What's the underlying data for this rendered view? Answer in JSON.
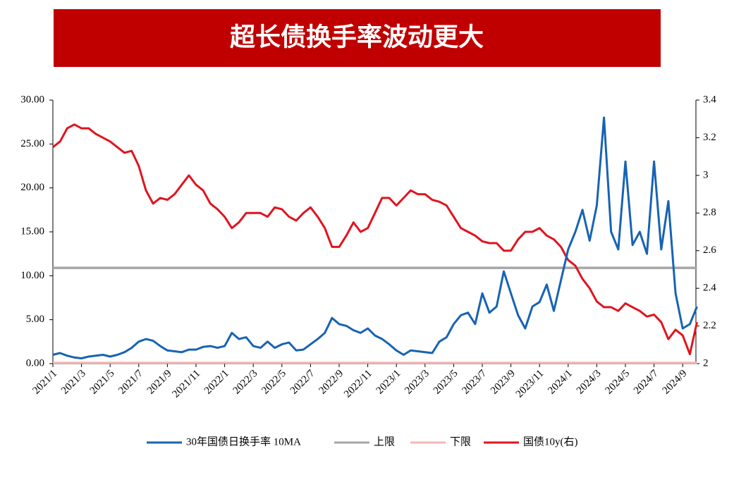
{
  "chart_data": {
    "type": "line",
    "title": "超长债换手率波动更大",
    "categories": [
      "2021/1",
      null,
      null,
      null,
      "2021/3",
      null,
      null,
      null,
      "2021/5",
      null,
      null,
      null,
      "2021/7",
      null,
      null,
      null,
      "2021/9",
      null,
      null,
      null,
      "2021/11",
      null,
      null,
      null,
      "2022/1",
      null,
      null,
      null,
      "2022/3",
      null,
      null,
      null,
      "2022/5",
      null,
      null,
      null,
      "2022/7",
      null,
      null,
      null,
      "2022/9",
      null,
      null,
      null,
      "2022/11",
      null,
      null,
      null,
      "2023/1",
      null,
      null,
      null,
      "2023/3",
      null,
      null,
      null,
      "2023/5",
      null,
      null,
      null,
      "2023/7",
      null,
      null,
      null,
      "2023/9",
      null,
      null,
      null,
      "2023/11",
      null,
      null,
      null,
      "2024/1",
      null,
      null,
      null,
      "2024/3",
      null,
      null,
      null,
      "2024/5",
      null,
      null,
      null,
      "2024/7",
      null,
      null,
      null,
      "2024/9",
      null,
      null
    ],
    "ylim": [
      0,
      30
    ],
    "yticks": [
      {
        "value": 0,
        "label": "0.00"
      },
      {
        "value": 5,
        "label": "5.00"
      },
      {
        "value": 10,
        "label": "10.00"
      },
      {
        "value": 15,
        "label": "15.00"
      },
      {
        "value": 20,
        "label": "20.00"
      },
      {
        "value": 25,
        "label": "25.00"
      },
      {
        "value": 30,
        "label": "30.00"
      }
    ],
    "y2lim": [
      2,
      3.4
    ],
    "y2ticks": [
      2,
      2.2,
      2.4,
      2.6,
      2.8,
      3,
      3.2,
      3.4
    ],
    "series": [
      {
        "name": "30年国债日换手率 10MA",
        "color": "#1763b4",
        "values": [
          1.0,
          1.2,
          0.9,
          0.7,
          0.6,
          0.8,
          0.9,
          1.0,
          0.8,
          1.0,
          1.3,
          1.8,
          2.5,
          2.8,
          2.6,
          2.0,
          1.5,
          1.4,
          1.3,
          1.6,
          1.6,
          1.9,
          2.0,
          1.8,
          2.0,
          3.5,
          2.8,
          3.0,
          2.0,
          1.8,
          2.5,
          1.8,
          2.2,
          2.4,
          1.5,
          1.6,
          2.2,
          2.8,
          3.5,
          5.2,
          4.5,
          4.3,
          3.8,
          3.5,
          4.0,
          3.2,
          2.8,
          2.2,
          1.5,
          1.0,
          1.5,
          1.4,
          1.3,
          1.2,
          2.5,
          3.0,
          4.5,
          5.5,
          5.8,
          4.5,
          8.0,
          5.8,
          6.5,
          10.5,
          8.0,
          5.5,
          4.0,
          6.5,
          7.0,
          9.0,
          6.0,
          9.5,
          13.0,
          15,
          17.5,
          14,
          18,
          28,
          15,
          13,
          23,
          13.5,
          15,
          12.5,
          23,
          13,
          18.5,
          8,
          4.0,
          4.5,
          6.5
        ]
      },
      {
        "name": "上限",
        "color": "#a6a6a6",
        "values": [
          10.9,
          10.9,
          10.9,
          10.9,
          10.9,
          10.9,
          10.9,
          10.9,
          10.9,
          10.9,
          10.9,
          10.9,
          10.9,
          10.9,
          10.9,
          10.9,
          10.9,
          10.9,
          10.9,
          10.9,
          10.9,
          10.9,
          10.9,
          10.9,
          10.9,
          10.9,
          10.9,
          10.9,
          10.9,
          10.9,
          10.9,
          10.9,
          10.9,
          10.9,
          10.9,
          10.9,
          10.9,
          10.9,
          10.9,
          10.9,
          10.9,
          10.9,
          10.9,
          10.9,
          10.9,
          10.9,
          10.9,
          10.9,
          10.9,
          10.9,
          10.9,
          10.9,
          10.9,
          10.9,
          10.9,
          10.9,
          10.9,
          10.9,
          10.9,
          10.9,
          10.9,
          10.9,
          10.9,
          10.9,
          10.9,
          10.9,
          10.9,
          10.9,
          10.9,
          10.9,
          10.9,
          10.9,
          10.9,
          10.9,
          10.9,
          10.9,
          10.9,
          10.9,
          10.9,
          10.9,
          10.9,
          10.9,
          10.9,
          10.9,
          10.9,
          10.9,
          10.9,
          10.9,
          10.9,
          10.9,
          10.9
        ]
      },
      {
        "name": "下限",
        "color": "#f4b6b8",
        "values": [
          0.1,
          0.1,
          0.1,
          0.1,
          0.1,
          0.1,
          0.1,
          0.1,
          0.1,
          0.1,
          0.1,
          0.1,
          0.1,
          0.1,
          0.1,
          0.1,
          0.1,
          0.1,
          0.1,
          0.1,
          0.1,
          0.1,
          0.1,
          0.1,
          0.1,
          0.1,
          0.1,
          0.1,
          0.1,
          0.1,
          0.1,
          0.1,
          0.1,
          0.1,
          0.1,
          0.1,
          0.1,
          0.1,
          0.1,
          0.1,
          0.1,
          0.1,
          0.1,
          0.1,
          0.1,
          0.1,
          0.1,
          0.1,
          0.1,
          0.1,
          0.1,
          0.1,
          0.1,
          0.1,
          0.1,
          0.1,
          0.1,
          0.1,
          0.1,
          0.1,
          0.1,
          0.1,
          0.1,
          0.1,
          0.1,
          0.1,
          0.1,
          0.1,
          0.1,
          0.1,
          0.1,
          0.1,
          0.1,
          0.1,
          0.1,
          0.1,
          0.1,
          0.1,
          0.1,
          0.1,
          0.1,
          0.1,
          0.1,
          0.1,
          0.1,
          0.1,
          0.1,
          0.1,
          0.1,
          0.1,
          0.1
        ]
      },
      {
        "name": "国债10y(右)",
        "color": "#e0141e",
        "axis": "y2",
        "values": [
          3.15,
          3.18,
          3.25,
          3.27,
          3.25,
          3.25,
          3.22,
          3.2,
          3.18,
          3.15,
          3.12,
          3.13,
          3.05,
          2.92,
          2.85,
          2.88,
          2.87,
          2.9,
          2.95,
          3.0,
          2.95,
          2.92,
          2.85,
          2.82,
          2.78,
          2.72,
          2.75,
          2.8,
          2.8,
          2.8,
          2.78,
          2.83,
          2.82,
          2.78,
          2.76,
          2.8,
          2.83,
          2.78,
          2.72,
          2.62,
          2.62,
          2.68,
          2.75,
          2.7,
          2.72,
          2.8,
          2.88,
          2.88,
          2.84,
          2.88,
          2.92,
          2.9,
          2.9,
          2.87,
          2.86,
          2.84,
          2.78,
          2.72,
          2.7,
          2.68,
          2.65,
          2.64,
          2.64,
          2.6,
          2.6,
          2.66,
          2.7,
          2.7,
          2.72,
          2.68,
          2.66,
          2.62,
          2.55,
          2.52,
          2.45,
          2.4,
          2.33,
          2.3,
          2.3,
          2.28,
          2.32,
          2.3,
          2.28,
          2.25,
          2.26,
          2.22,
          2.13,
          2.18,
          2.15,
          2.05,
          2.22
        ]
      }
    ]
  }
}
